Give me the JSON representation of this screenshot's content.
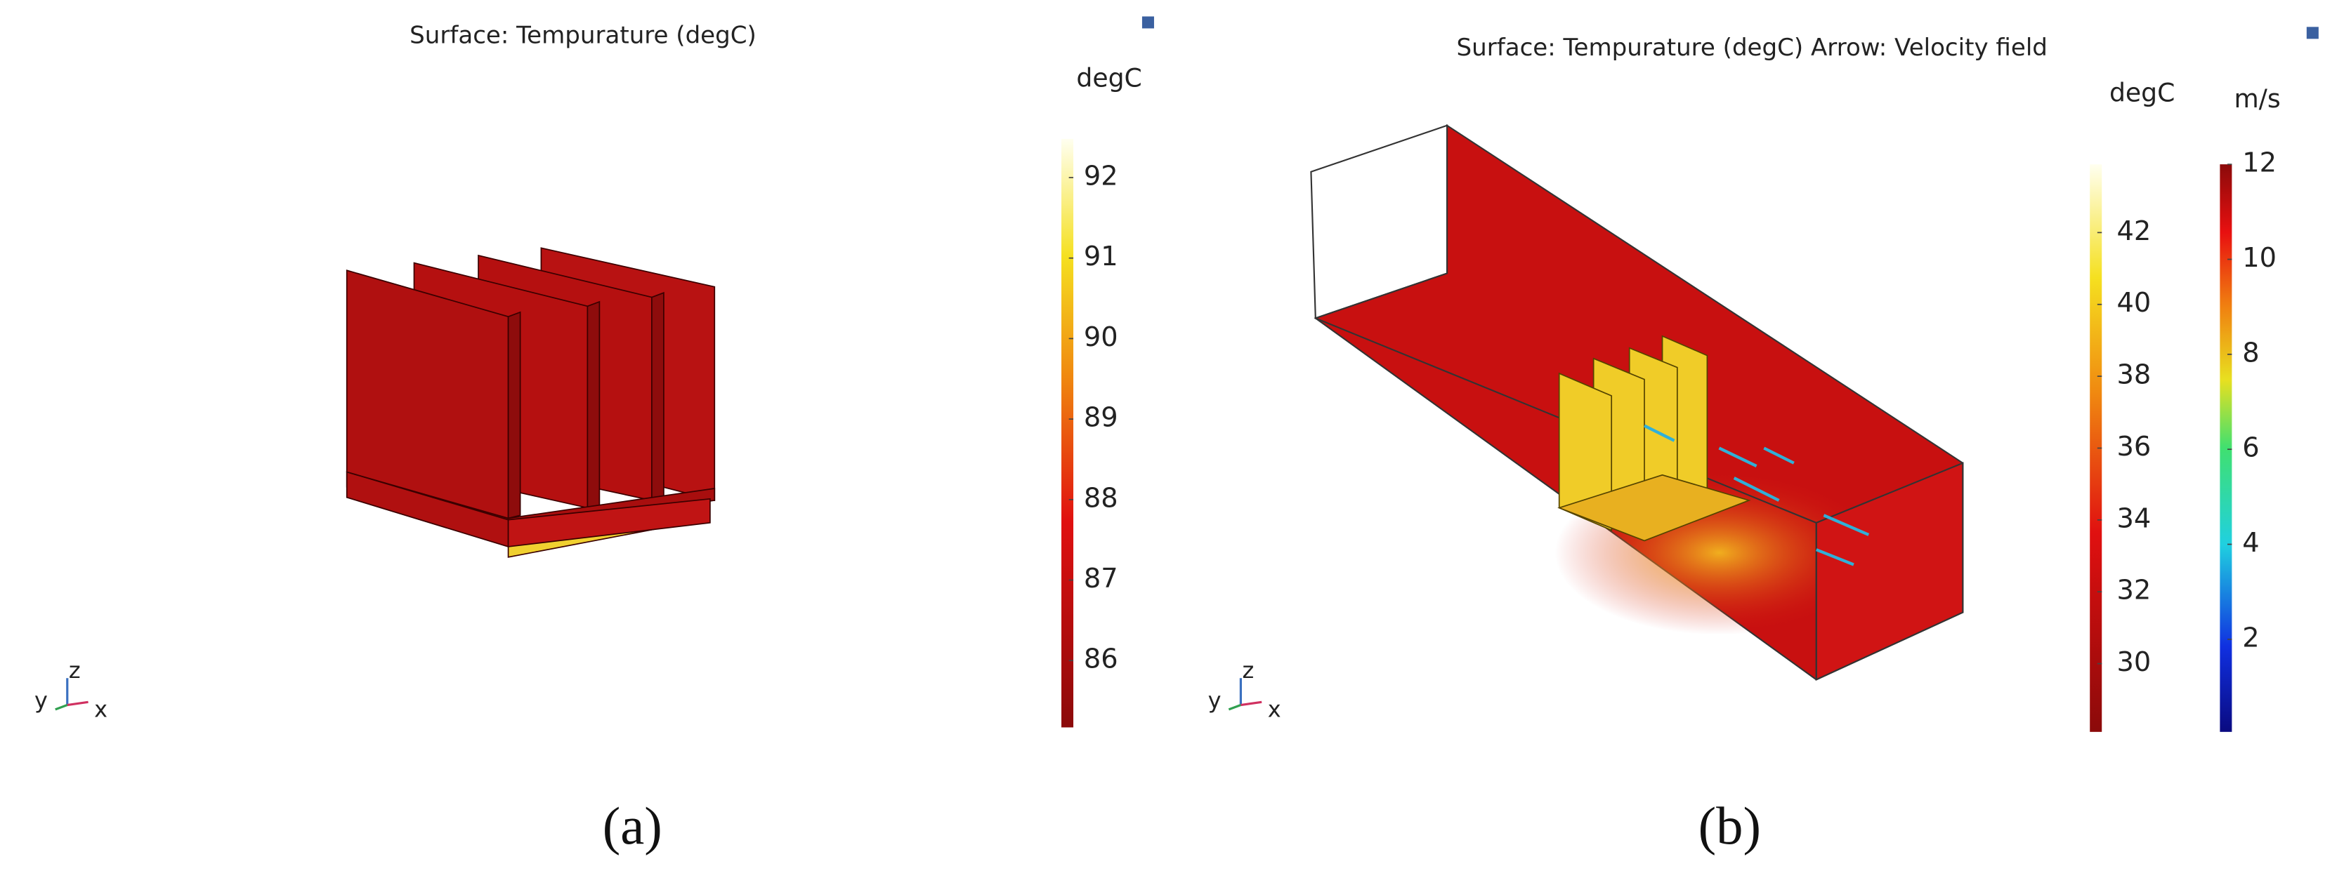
{
  "panels": [
    {
      "title": "Surface: Tempurature (degC)",
      "caption": "(a)",
      "triad": [
        "z",
        "y",
        "x"
      ],
      "colorbars": [
        {
          "unit": "degC",
          "range": [
            85.17,
            92.48
          ],
          "ticks": [
            86,
            87,
            88,
            89,
            90,
            91,
            92
          ]
        }
      ]
    },
    {
      "title": "Surface: Tempurature (degC) Arrow: Velocity field",
      "caption": "(b)",
      "triad": [
        "z",
        "y",
        "x"
      ],
      "colorbars": [
        {
          "unit": "degC",
          "range": [
            28.1,
            43.9
          ],
          "ticks": [
            30,
            32,
            34,
            36,
            38,
            40,
            42
          ]
        },
        {
          "unit": "m/s",
          "range": [
            0.05,
            12
          ],
          "ticks": [
            2,
            4,
            6,
            8,
            10,
            12
          ]
        }
      ]
    }
  ]
}
